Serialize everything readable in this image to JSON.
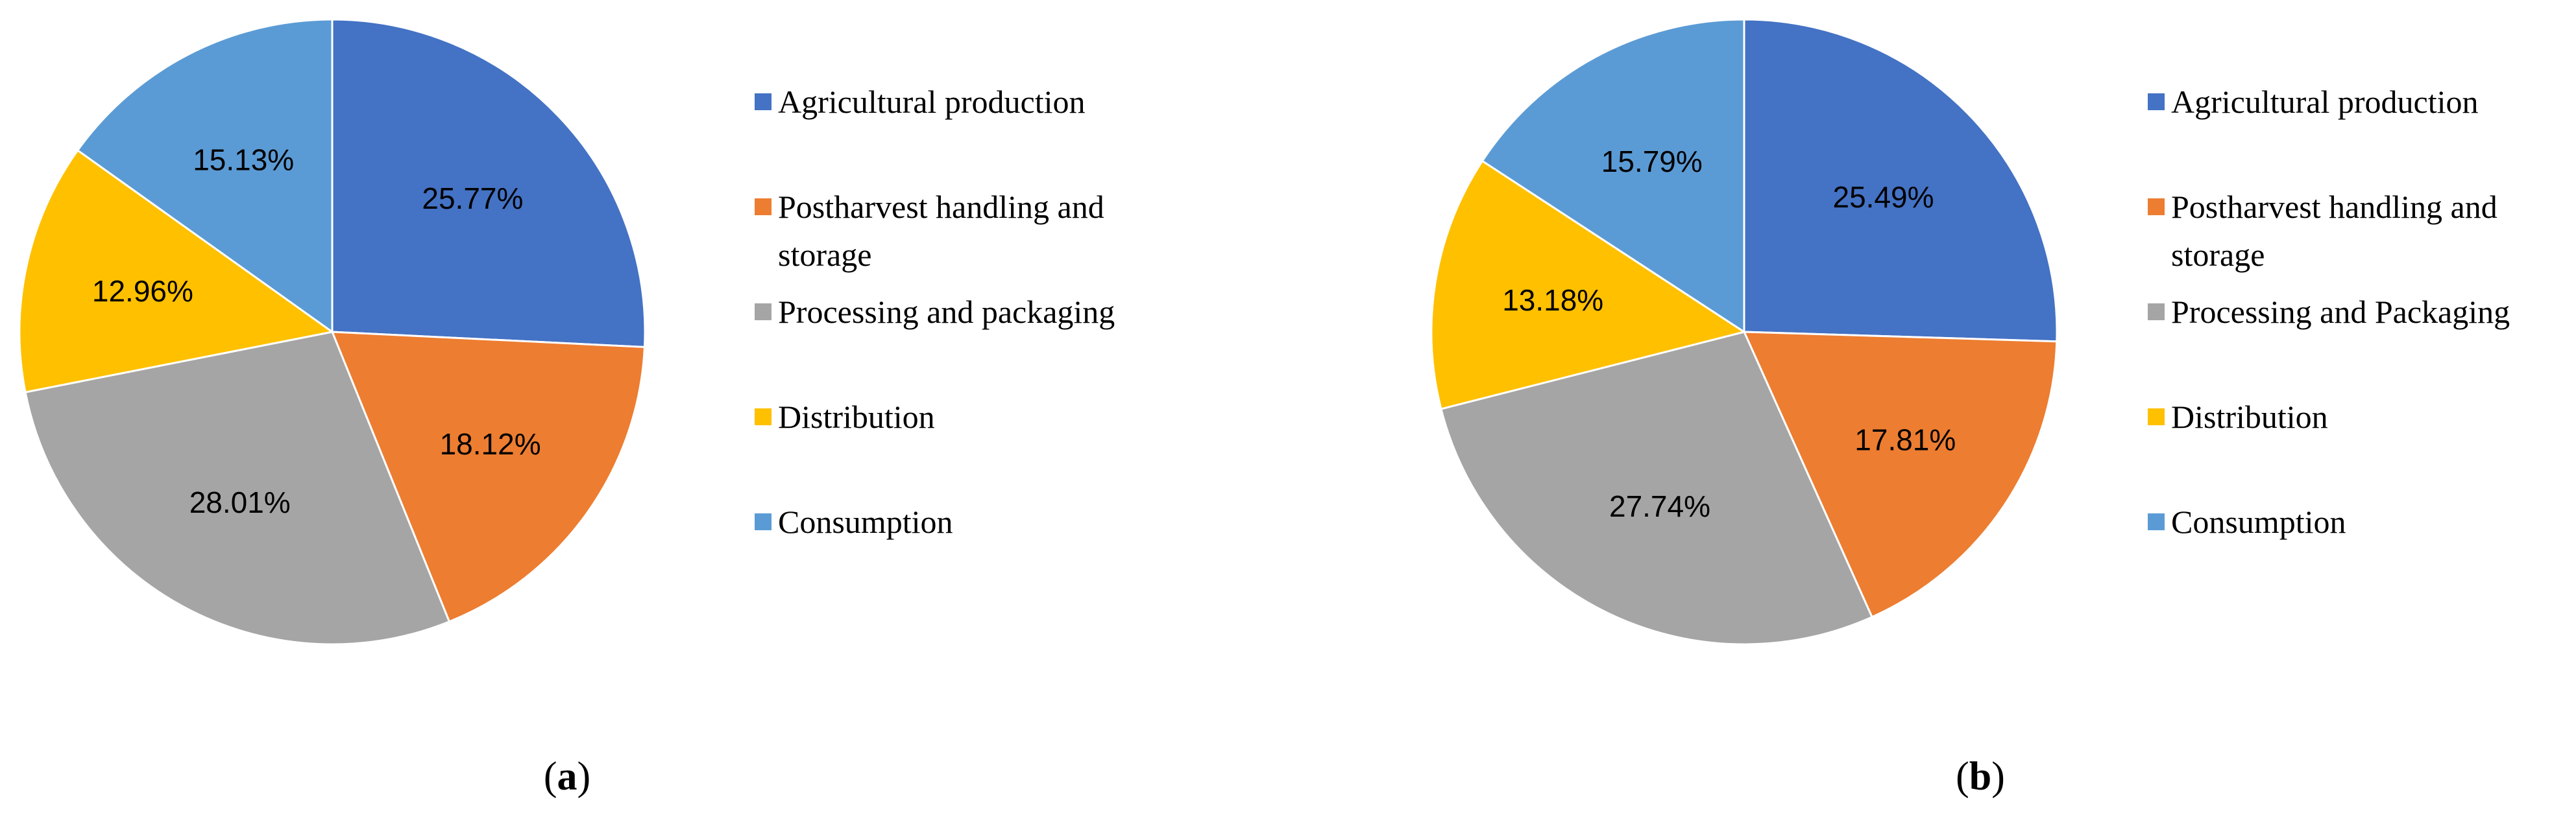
{
  "chart_data": [
    {
      "type": "pie",
      "panel_label": "a",
      "categories": [
        "Agricultural production",
        "Postharvest handling and storage",
        "Processing and packaging",
        "Distribution",
        "Consumption"
      ],
      "values": [
        25.77,
        18.12,
        28.01,
        12.96,
        15.13
      ],
      "data_labels": [
        "25.77%",
        "18.12%",
        "28.01%",
        "12.96%",
        "15.13%"
      ],
      "legend": [
        {
          "label_lines": [
            "Agricultural production"
          ],
          "color": "#4472C4"
        },
        {
          "label_lines": [
            "Postharvest handling and",
            "storage"
          ],
          "color": "#ED7D31"
        },
        {
          "label_lines": [
            "Processing and packaging"
          ],
          "color": "#A5A5A5"
        },
        {
          "label_lines": [
            "Distribution"
          ],
          "color": "#FFC000"
        },
        {
          "label_lines": [
            "Consumption"
          ],
          "color": "#5B9BD5"
        }
      ],
      "colors": [
        "#4472C4",
        "#ED7D31",
        "#A5A5A5",
        "#FFC000",
        "#5B9BD5"
      ],
      "legend_position": "right",
      "start_angle": "12 o'clock",
      "direction": "clockwise"
    },
    {
      "type": "pie",
      "panel_label": "b",
      "categories": [
        "Agricultural production",
        "Postharvest handling and storage",
        "Processing and Packaging",
        "Distribution",
        "Consumption"
      ],
      "values": [
        25.49,
        17.81,
        27.74,
        13.18,
        15.79
      ],
      "data_labels": [
        "25.49%",
        "17.81%",
        "27.74%",
        "13.18%",
        "15.79%"
      ],
      "legend": [
        {
          "label_lines": [
            "Agricultural production"
          ],
          "color": "#4472C4"
        },
        {
          "label_lines": [
            "Postharvest handling and",
            "storage"
          ],
          "color": "#ED7D31"
        },
        {
          "label_lines": [
            "Processing and Packaging"
          ],
          "color": "#A5A5A5"
        },
        {
          "label_lines": [
            "Distribution"
          ],
          "color": "#FFC000"
        },
        {
          "label_lines": [
            "Consumption"
          ],
          "color": "#5B9BD5"
        }
      ],
      "colors": [
        "#4472C4",
        "#ED7D31",
        "#A5A5A5",
        "#FFC000",
        "#5B9BD5"
      ],
      "legend_position": "right",
      "start_angle": "12 o'clock",
      "direction": "clockwise"
    }
  ]
}
